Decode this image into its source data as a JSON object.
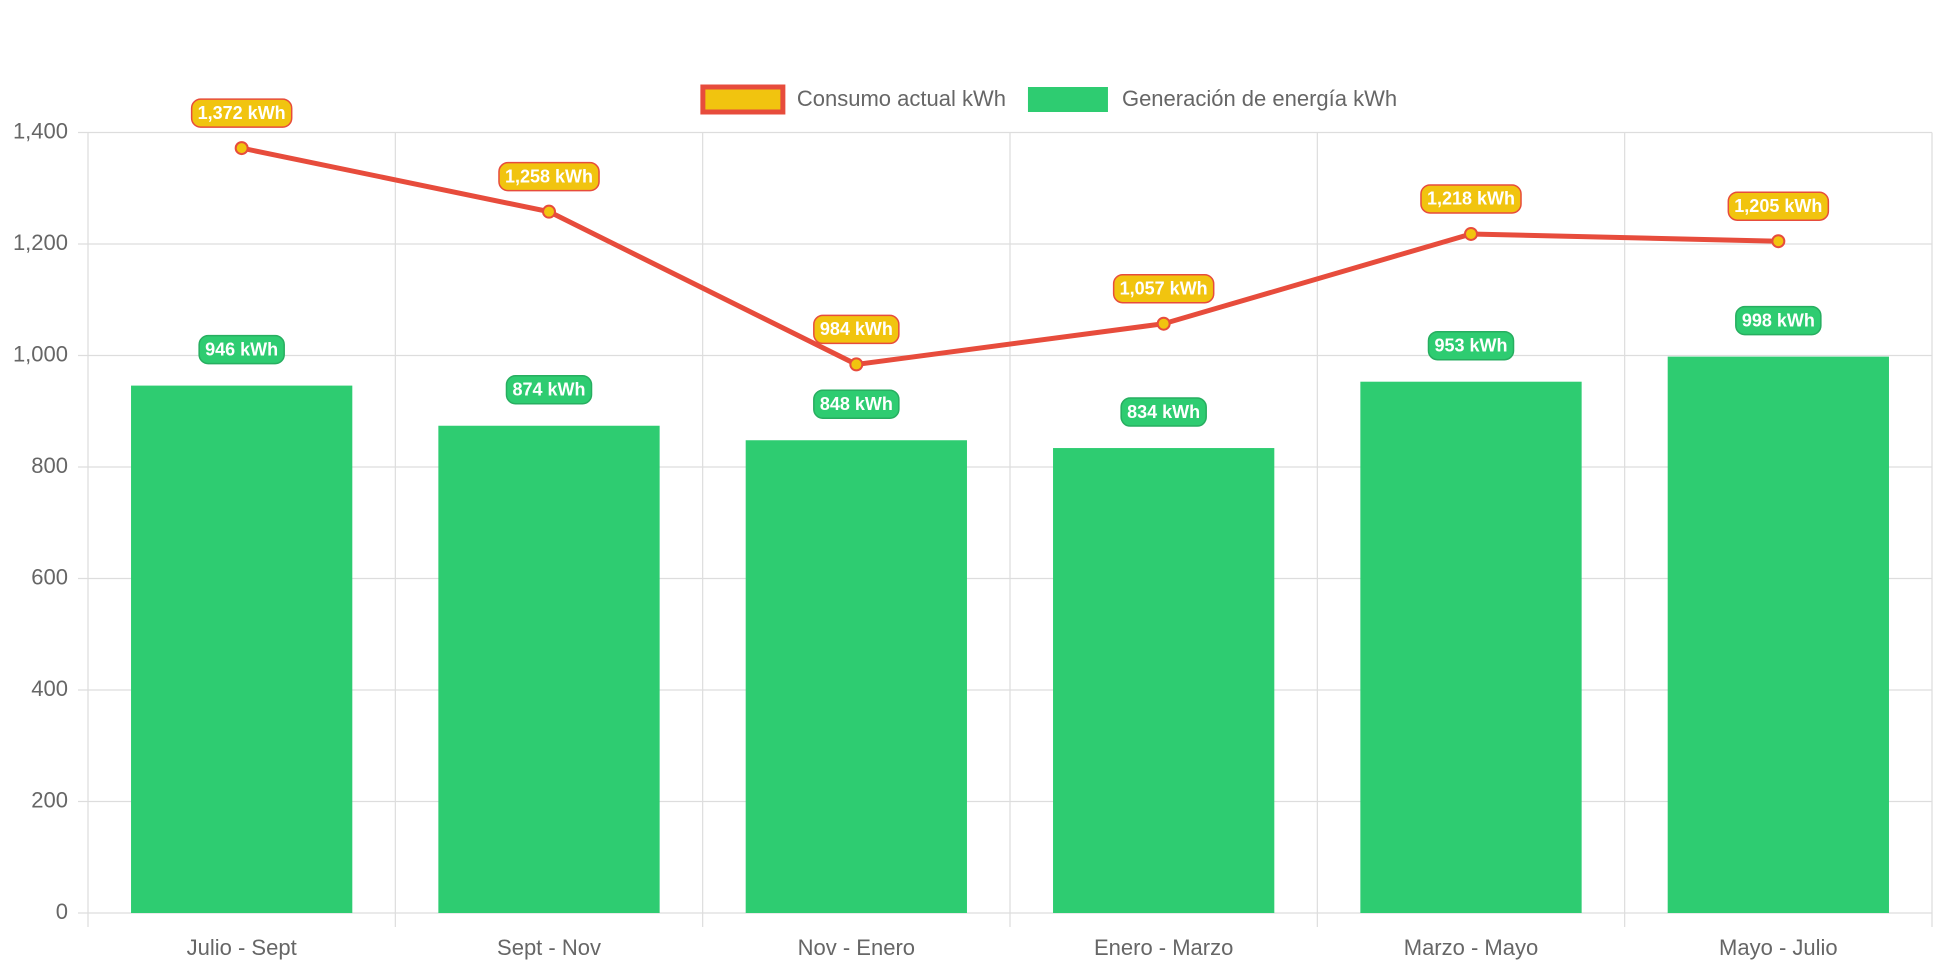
{
  "chart_data": {
    "type": "bar",
    "categories": [
      "Julio - Sept",
      "Sept - Nov",
      "Nov - Enero",
      "Enero - Marzo",
      "Marzo - Mayo",
      "Mayo - Julio"
    ],
    "series": [
      {
        "name": "Consumo actual kWh",
        "type": "line",
        "color": "#e74c3c",
        "point_color": "#f1c40f",
        "values": [
          1372,
          1258,
          984,
          1057,
          1218,
          1205
        ],
        "value_labels": [
          "1,372 kWh",
          "1,258 kWh",
          "984 kWh",
          "1,057 kWh",
          "1,218 kWh",
          "1,205 kWh"
        ]
      },
      {
        "name": "Generación de energía kWh",
        "type": "bar",
        "color": "#2ecc71",
        "values": [
          946,
          874,
          848,
          834,
          953,
          998
        ],
        "value_labels": [
          "946 kWh",
          "874 kWh",
          "848 kWh",
          "834 kWh",
          "953 kWh",
          "998 kWh"
        ]
      }
    ],
    "ylim": [
      0,
      1400
    ],
    "yticks": [
      0,
      200,
      400,
      600,
      800,
      {
        "value": 1000,
        "label": "1,000"
      },
      {
        "value": 1200,
        "label": "1,200"
      },
      {
        "value": 1400,
        "label": "1,400"
      }
    ],
    "grid": true,
    "legend": "top"
  }
}
